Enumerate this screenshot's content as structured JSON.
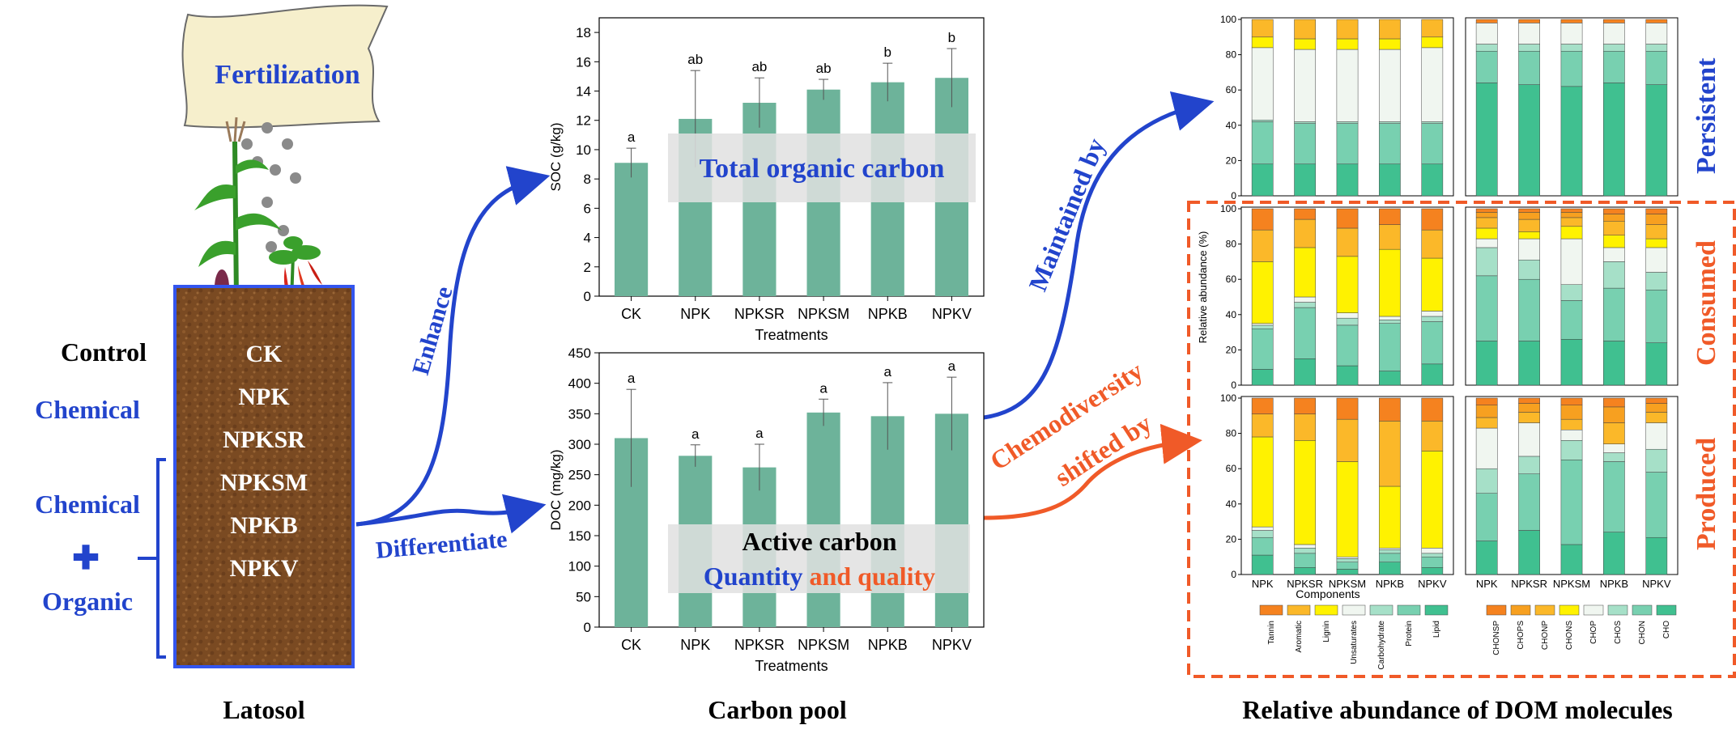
{
  "colors": {
    "bar_green": "#6db39a",
    "blue_text": "#2244cc",
    "orange_text": "#f05a28",
    "soil": "#7a4a22",
    "stack": [
      "#f5821f",
      "#fbb829",
      "#fff200",
      "#f0f6f0",
      "#a6e0c8",
      "#78d0b0",
      "#40c090"
    ]
  },
  "left": {
    "fertilization": "Fertilization",
    "control": "Control",
    "chemical": "Chemical",
    "chemical2": "Chemical",
    "plus": "✚",
    "organic": "Organic",
    "treatments": [
      "CK",
      "NPK",
      "NPKSR",
      "NPKSM",
      "NPKB",
      "NPKV"
    ],
    "caption": "Latosol"
  },
  "arrows": {
    "enhance": "Enhance",
    "differentiate": "Differentiate",
    "maintained": "Maintained by",
    "chemodiversity": "Chemodiversity",
    "shifted": "shifted by"
  },
  "middle_caption": "Carbon pool",
  "right_caption": "Relative abundance of DOM molecules",
  "right_labels": {
    "persistent": "Persistent",
    "consumed": "Consumed",
    "produced": "Produced",
    "ylabel": "Relative abundance (%)",
    "xlabel": "Components"
  },
  "chart_data": [
    {
      "type": "bar",
      "categories": [
        "CK",
        "NPK",
        "NPKSR",
        "NPKSM",
        "NPKB",
        "NPKV"
      ],
      "values": [
        9.1,
        12.1,
        13.2,
        14.1,
        14.6,
        14.9
      ],
      "errors": [
        1.0,
        3.3,
        1.7,
        0.7,
        1.3,
        2.0
      ],
      "letters": [
        "a",
        "ab",
        "ab",
        "ab",
        "b",
        "b"
      ],
      "ylabel": "SOC (g/kg)",
      "xlabel": "Treatments",
      "ylim": [
        0,
        19
      ],
      "yticks": [
        0,
        2,
        4,
        6,
        8,
        10,
        12,
        14,
        16,
        18
      ],
      "overlay": "Total organic carbon"
    },
    {
      "type": "bar",
      "categories": [
        "CK",
        "NPK",
        "NPKSR",
        "NPKSM",
        "NPKB",
        "NPKV"
      ],
      "values": [
        310,
        281,
        262,
        352,
        346,
        350
      ],
      "errors": [
        80,
        18,
        38,
        22,
        55,
        60
      ],
      "letters": [
        "a",
        "a",
        "a",
        "a",
        "a",
        "a"
      ],
      "ylabel": "DOC (mg/kg)",
      "xlabel": "Treatments",
      "ylim": [
        0,
        450
      ],
      "yticks": [
        0,
        50,
        100,
        150,
        200,
        250,
        300,
        350,
        400,
        450
      ],
      "overlay_1": "Active carbon",
      "overlay_2a": "Quantity",
      "overlay_2b": "and quality"
    },
    {
      "type": "stacked_bar",
      "panel": "persistent-compound-classes",
      "categories": [
        "NPK",
        "NPKSR",
        "NPKSM",
        "NPKB",
        "NPKV"
      ],
      "stacks": [
        [
          18,
          24,
          1,
          41,
          6,
          10,
          0
        ],
        [
          18,
          23,
          1,
          41,
          6,
          11,
          0
        ],
        [
          18,
          23,
          1,
          41,
          6,
          11,
          0
        ],
        [
          18,
          23,
          1,
          41,
          6,
          11,
          0
        ],
        [
          18,
          23,
          1,
          42,
          6,
          10,
          0
        ]
      ],
      "yticks": [
        0,
        20,
        40,
        60,
        80,
        100
      ]
    },
    {
      "type": "stacked_bar",
      "panel": "persistent-elemental",
      "categories": [
        "NPK",
        "NPKSR",
        "NPKSM",
        "NPKB",
        "NPKV"
      ],
      "stacks": [
        [
          64,
          18,
          4,
          12,
          0,
          0,
          0,
          2
        ],
        [
          63,
          19,
          4,
          12,
          0,
          0,
          0,
          2
        ],
        [
          62,
          20,
          4,
          12,
          0,
          0,
          0,
          2
        ],
        [
          64,
          18,
          4,
          12,
          0,
          0,
          0,
          2
        ],
        [
          63,
          19,
          4,
          12,
          0,
          0,
          0,
          2
        ]
      ]
    },
    {
      "type": "stacked_bar",
      "panel": "consumed-compound-classes",
      "categories": [
        "NPK",
        "NPKSR",
        "NPKSM",
        "NPKB",
        "NPKV"
      ],
      "stacks": [
        [
          9,
          23,
          2,
          1,
          35,
          18,
          12
        ],
        [
          15,
          29,
          3,
          3,
          28,
          16,
          6
        ],
        [
          11,
          23,
          4,
          3,
          32,
          16,
          11
        ],
        [
          8,
          27,
          2,
          2,
          38,
          14,
          9
        ],
        [
          12,
          24,
          3,
          3,
          30,
          16,
          12
        ]
      ]
    },
    {
      "type": "stacked_bar",
      "panel": "consumed-elemental",
      "categories": [
        "NPK",
        "NPKSR",
        "NPKSM",
        "NPKB",
        "NPKV"
      ],
      "stacks": [
        [
          25,
          37,
          16,
          5,
          6,
          6,
          3,
          2
        ],
        [
          25,
          35,
          11,
          12,
          4,
          7,
          4,
          2
        ],
        [
          26,
          22,
          9,
          26,
          7,
          5,
          3,
          2
        ],
        [
          25,
          30,
          15,
          8,
          7,
          8,
          4,
          3
        ],
        [
          24,
          30,
          10,
          14,
          5,
          8,
          6,
          3
        ]
      ]
    },
    {
      "type": "stacked_bar",
      "panel": "produced-compound-classes",
      "categories": [
        "NPK",
        "NPKSR",
        "NPKSM",
        "NPKB",
        "NPKV"
      ],
      "stacks": [
        [
          11,
          10,
          4,
          2,
          51,
          13,
          9
        ],
        [
          4,
          8,
          3,
          2,
          59,
          15,
          9
        ],
        [
          3,
          4,
          2,
          1,
          54,
          24,
          12
        ],
        [
          7,
          5,
          2,
          1,
          35,
          37,
          13
        ],
        [
          4,
          6,
          2,
          3,
          55,
          17,
          13
        ]
      ]
    },
    {
      "type": "stacked_bar",
      "panel": "produced-elemental",
      "categories": [
        "NPK",
        "NPKSR",
        "NPKSM",
        "NPKB",
        "NPKV"
      ],
      "stacks": [
        [
          19,
          27,
          14,
          23,
          0,
          6,
          7,
          4
        ],
        [
          25,
          32,
          10,
          19,
          0,
          6,
          5,
          3
        ],
        [
          17,
          48,
          11,
          6,
          0,
          6,
          8,
          4
        ],
        [
          24,
          40,
          5,
          5,
          0,
          12,
          9,
          5
        ],
        [
          21,
          37,
          13,
          15,
          0,
          6,
          5,
          3
        ]
      ]
    }
  ],
  "legend_compound": [
    "Tannin",
    "Aromatic",
    "Lignin",
    "Unsaturates",
    "Carbohydrate",
    "Protein",
    "Lipid"
  ],
  "legend_elemental": [
    "CHONSP",
    "CHOPS",
    "CHONP",
    "CHONS",
    "CHOP",
    "CHOS",
    "CHON",
    "CHO"
  ]
}
